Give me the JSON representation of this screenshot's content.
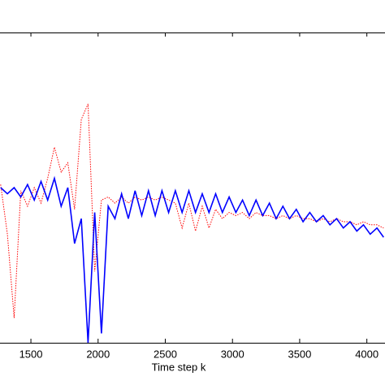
{
  "chart_data": {
    "type": "line",
    "xlabel": "Time step k",
    "x": [
      1275,
      1325,
      1375,
      1425,
      1475,
      1525,
      1575,
      1625,
      1675,
      1725,
      1775,
      1825,
      1875,
      1925,
      1975,
      2025,
      2075,
      2125,
      2175,
      2225,
      2275,
      2325,
      2375,
      2425,
      2475,
      2525,
      2575,
      2625,
      2675,
      2725,
      2775,
      2825,
      2875,
      2925,
      2975,
      3025,
      3075,
      3125,
      3175,
      3225,
      3275,
      3325,
      3375,
      3425,
      3475,
      3525,
      3575,
      3625,
      3675,
      3725,
      3775,
      3825,
      3875,
      3925,
      3975,
      4025,
      4075,
      4125
    ],
    "series": [
      {
        "color": "#ff0000",
        "style": "dotted",
        "values": [
          5.1,
          3.5,
          0.8,
          4.9,
          4.4,
          5.0,
          4.5,
          5.3,
          6.3,
          5.5,
          5.8,
          4.3,
          7.2,
          7.7,
          2.3,
          4.6,
          4.7,
          4.5,
          4.7,
          4.5,
          4.7,
          4.6,
          4.7,
          4.6,
          4.7,
          4.6,
          4.5,
          3.7,
          4.5,
          3.6,
          4.4,
          3.7,
          4.3,
          4.0,
          4.2,
          4.1,
          4.2,
          4.0,
          4.2,
          4.1,
          4.1,
          4.0,
          4.1,
          4.0,
          4.1,
          4.0,
          4.0,
          3.9,
          4.0,
          3.9,
          4.0,
          3.9,
          3.9,
          3.8,
          3.9,
          3.8,
          3.8,
          3.7
        ]
      },
      {
        "color": "#0000ff",
        "style": "solid",
        "values": [
          5.0,
          4.8,
          5.0,
          4.7,
          5.1,
          4.6,
          5.2,
          4.6,
          5.3,
          4.4,
          5.0,
          3.2,
          4.0,
          0.0,
          4.2,
          0.3,
          4.4,
          4.0,
          4.8,
          4.0,
          4.9,
          4.1,
          4.9,
          4.1,
          4.9,
          4.2,
          4.9,
          4.2,
          4.9,
          4.2,
          4.8,
          4.2,
          4.8,
          4.2,
          4.7,
          4.2,
          4.6,
          4.1,
          4.6,
          4.1,
          4.5,
          4.0,
          4.4,
          4.0,
          4.3,
          3.9,
          4.2,
          3.9,
          4.1,
          3.8,
          4.0,
          3.7,
          3.9,
          3.6,
          3.8,
          3.5,
          3.7,
          3.4
        ]
      }
    ],
    "xlim": [
      1270,
      4135
    ],
    "xticks": [
      1500,
      2000,
      2500,
      3000,
      3500,
      4000
    ],
    "ylim": [
      0,
      10
    ],
    "grid": false
  }
}
